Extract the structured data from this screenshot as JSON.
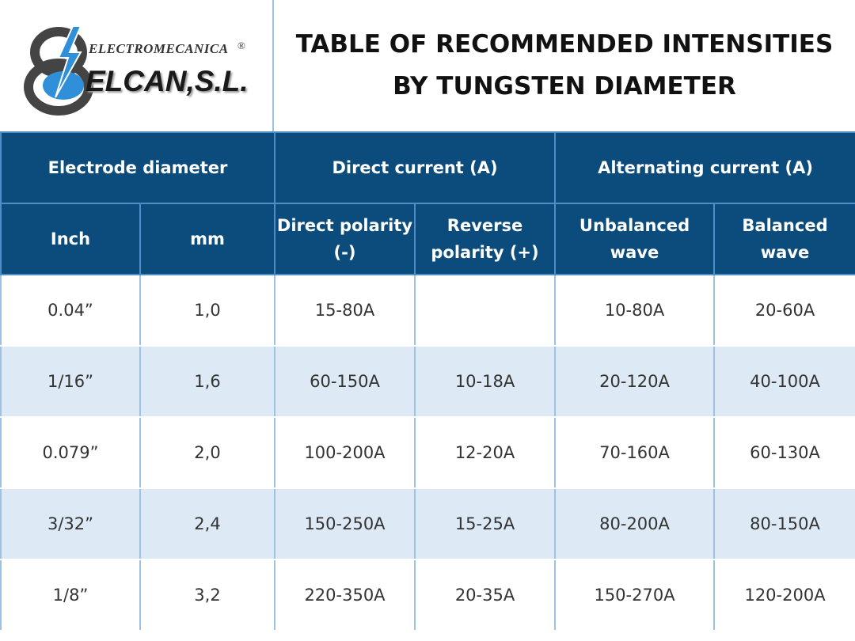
{
  "logo": {
    "top": "ELECTROMECANICA",
    "mark": "®",
    "name": "ELCAN,S.L."
  },
  "title": [
    "TABLE OF RECOMMENDED INTENSITIES",
    "BY TUNGSTEN DIAMETER"
  ],
  "table": {
    "groups": [
      "Electrode diameter",
      "Direct current (A)",
      "Alternating current (A)"
    ],
    "columns": [
      [
        "Inch"
      ],
      [
        "mm"
      ],
      [
        "Direct polarity",
        "(-)"
      ],
      [
        "Reverse",
        "polarity (+)"
      ],
      [
        "Unbalanced",
        "wave"
      ],
      [
        "Balanced",
        "wave"
      ]
    ],
    "rows": [
      [
        "0.04”",
        "1,0",
        "15-80A",
        null,
        "10-80A",
        "20-60A"
      ],
      [
        "1/16”",
        "1,6",
        "60-150A",
        "10-18A",
        "20-120A",
        "40-100A"
      ],
      [
        "0.079”",
        "2,0",
        "100-200A",
        "12-20A",
        "70-160A",
        "60-130A"
      ],
      [
        "3/32”",
        "2,4",
        "150-250A",
        "15-25A",
        "80-200A",
        "80-150A"
      ],
      [
        "1/8”",
        "3,2",
        "220-350A",
        "20-35A",
        "150-270A",
        "120-200A"
      ]
    ]
  }
}
